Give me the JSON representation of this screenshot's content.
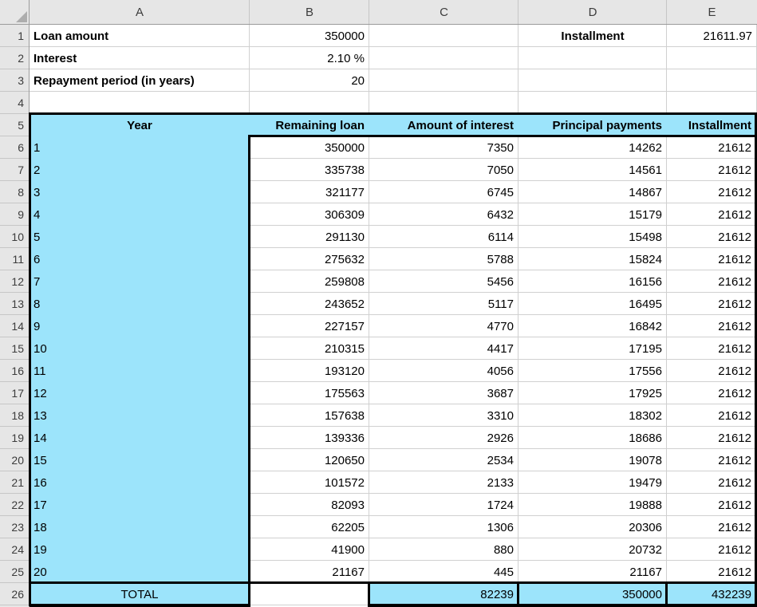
{
  "colors": {
    "highlight": "#9CE4FB",
    "header_bg": "#E6E6E6",
    "gridline": "#D0D0D0",
    "thick_border": "#000000"
  },
  "sheet": {
    "column_headers": [
      "A",
      "B",
      "C",
      "D",
      "E"
    ],
    "row_headers": [
      "1",
      "2",
      "3",
      "4",
      "5",
      "6",
      "7",
      "8",
      "9",
      "10",
      "11",
      "12",
      "13",
      "14",
      "15",
      "16",
      "17",
      "18",
      "19",
      "20",
      "21",
      "22",
      "23",
      "24",
      "25",
      "26"
    ]
  },
  "summary": {
    "loan_amount_label": "Loan amount",
    "loan_amount_value": "350000",
    "interest_label": "Interest",
    "interest_value": "2.10 %",
    "period_label": "Repayment period (in years)",
    "period_value": "20",
    "installment_label": "Installment",
    "installment_value": "21611.97"
  },
  "table": {
    "headers": {
      "year": "Year",
      "remaining": "Remaining loan",
      "interest": "Amount of interest",
      "principal": "Principal payments",
      "installment": "Installment"
    },
    "rows": [
      {
        "year": "1",
        "remaining": "350000",
        "interest": "7350",
        "principal": "14262",
        "installment": "21612"
      },
      {
        "year": "2",
        "remaining": "335738",
        "interest": "7050",
        "principal": "14561",
        "installment": "21612"
      },
      {
        "year": "3",
        "remaining": "321177",
        "interest": "6745",
        "principal": "14867",
        "installment": "21612"
      },
      {
        "year": "4",
        "remaining": "306309",
        "interest": "6432",
        "principal": "15179",
        "installment": "21612"
      },
      {
        "year": "5",
        "remaining": "291130",
        "interest": "6114",
        "principal": "15498",
        "installment": "21612"
      },
      {
        "year": "6",
        "remaining": "275632",
        "interest": "5788",
        "principal": "15824",
        "installment": "21612"
      },
      {
        "year": "7",
        "remaining": "259808",
        "interest": "5456",
        "principal": "16156",
        "installment": "21612"
      },
      {
        "year": "8",
        "remaining": "243652",
        "interest": "5117",
        "principal": "16495",
        "installment": "21612"
      },
      {
        "year": "9",
        "remaining": "227157",
        "interest": "4770",
        "principal": "16842",
        "installment": "21612"
      },
      {
        "year": "10",
        "remaining": "210315",
        "interest": "4417",
        "principal": "17195",
        "installment": "21612"
      },
      {
        "year": "11",
        "remaining": "193120",
        "interest": "4056",
        "principal": "17556",
        "installment": "21612"
      },
      {
        "year": "12",
        "remaining": "175563",
        "interest": "3687",
        "principal": "17925",
        "installment": "21612"
      },
      {
        "year": "13",
        "remaining": "157638",
        "interest": "3310",
        "principal": "18302",
        "installment": "21612"
      },
      {
        "year": "14",
        "remaining": "139336",
        "interest": "2926",
        "principal": "18686",
        "installment": "21612"
      },
      {
        "year": "15",
        "remaining": "120650",
        "interest": "2534",
        "principal": "19078",
        "installment": "21612"
      },
      {
        "year": "16",
        "remaining": "101572",
        "interest": "2133",
        "principal": "19479",
        "installment": "21612"
      },
      {
        "year": "17",
        "remaining": "82093",
        "interest": "1724",
        "principal": "19888",
        "installment": "21612"
      },
      {
        "year": "18",
        "remaining": "62205",
        "interest": "1306",
        "principal": "20306",
        "installment": "21612"
      },
      {
        "year": "19",
        "remaining": "41900",
        "interest": "880",
        "principal": "20732",
        "installment": "21612"
      },
      {
        "year": "20",
        "remaining": "21167",
        "interest": "445",
        "principal": "21167",
        "installment": "21612"
      }
    ],
    "total": {
      "label": "TOTAL",
      "interest": "82239",
      "principal": "350000",
      "installment": "432239"
    }
  }
}
